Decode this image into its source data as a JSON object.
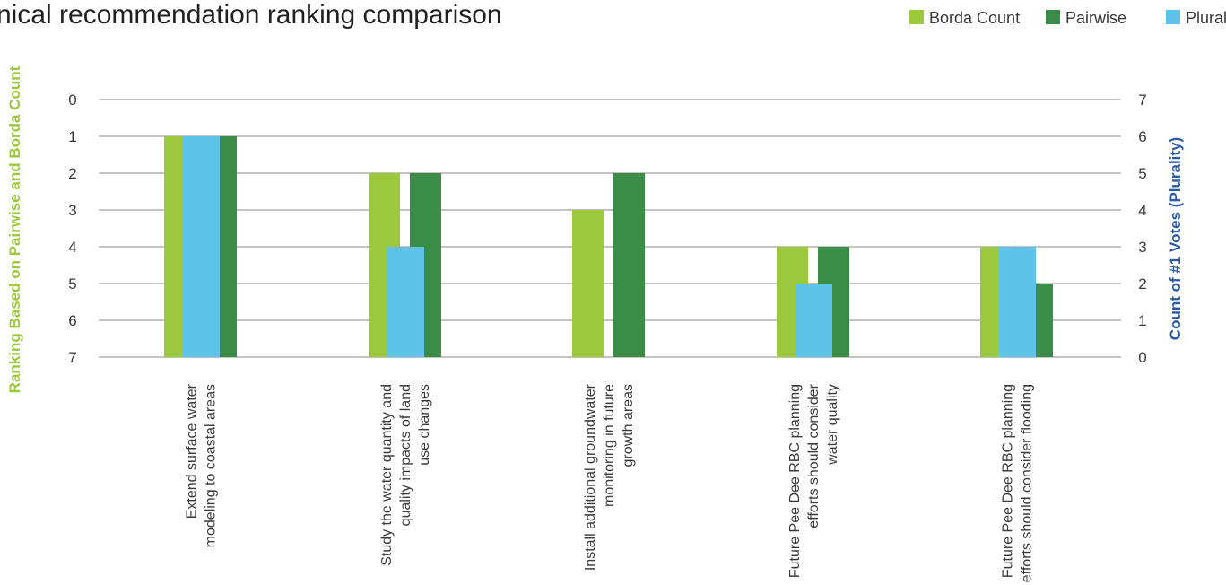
{
  "chart_data": {
    "type": "bar",
    "title": "nical recommendation ranking comparison",
    "ylabel_left": "Ranking Based on Pairwise and Borda Count",
    "ylabel_right": "Count of #1 Votes (Plurality)",
    "left_axis": {
      "ticks": [
        "0",
        "1",
        "2",
        "3",
        "4",
        "5",
        "6",
        "7"
      ],
      "ylim": [
        0,
        7
      ],
      "inverted": true
    },
    "right_axis": {
      "ticks": [
        "7",
        "6",
        "5",
        "4",
        "3",
        "2",
        "1",
        "0"
      ],
      "ylim": [
        0,
        7
      ]
    },
    "grid": true,
    "legend_position": "top-right",
    "categories": [
      [
        "Extend surface water",
        "modeling to coastal areas"
      ],
      [
        "Study the water  quantity and",
        "quality impacts of land",
        "use changes"
      ],
      [
        "Install additional groundwater",
        "monitoring in future",
        "growth areas"
      ],
      [
        "Future Pee Dee RBC planning",
        "efforts should consider",
        "water quality"
      ],
      [
        "Future Pee Dee RBC planning",
        "efforts should consider flooding"
      ]
    ],
    "series": [
      {
        "name": "Borda Count",
        "axis": "left",
        "color": "#9bc83d",
        "values": [
          1,
          2,
          3,
          4,
          4
        ]
      },
      {
        "name": "Plurality",
        "axis": "right",
        "color": "#5ec3e8",
        "values": [
          6,
          3,
          0,
          2,
          3
        ]
      },
      {
        "name": "Pairwise",
        "axis": "left",
        "color": "#3a8c46",
        "values": [
          1,
          2,
          2,
          4,
          5
        ]
      }
    ],
    "legend": [
      {
        "name": "Borda Count",
        "color": "#9bc83d"
      },
      {
        "name": "Pairwise",
        "color": "#3a8c46"
      },
      {
        "name": "Plurality",
        "color": "#5ec3e8"
      }
    ],
    "left_label_color": "#9bc83d",
    "right_label_color": "#2b5aa8"
  }
}
